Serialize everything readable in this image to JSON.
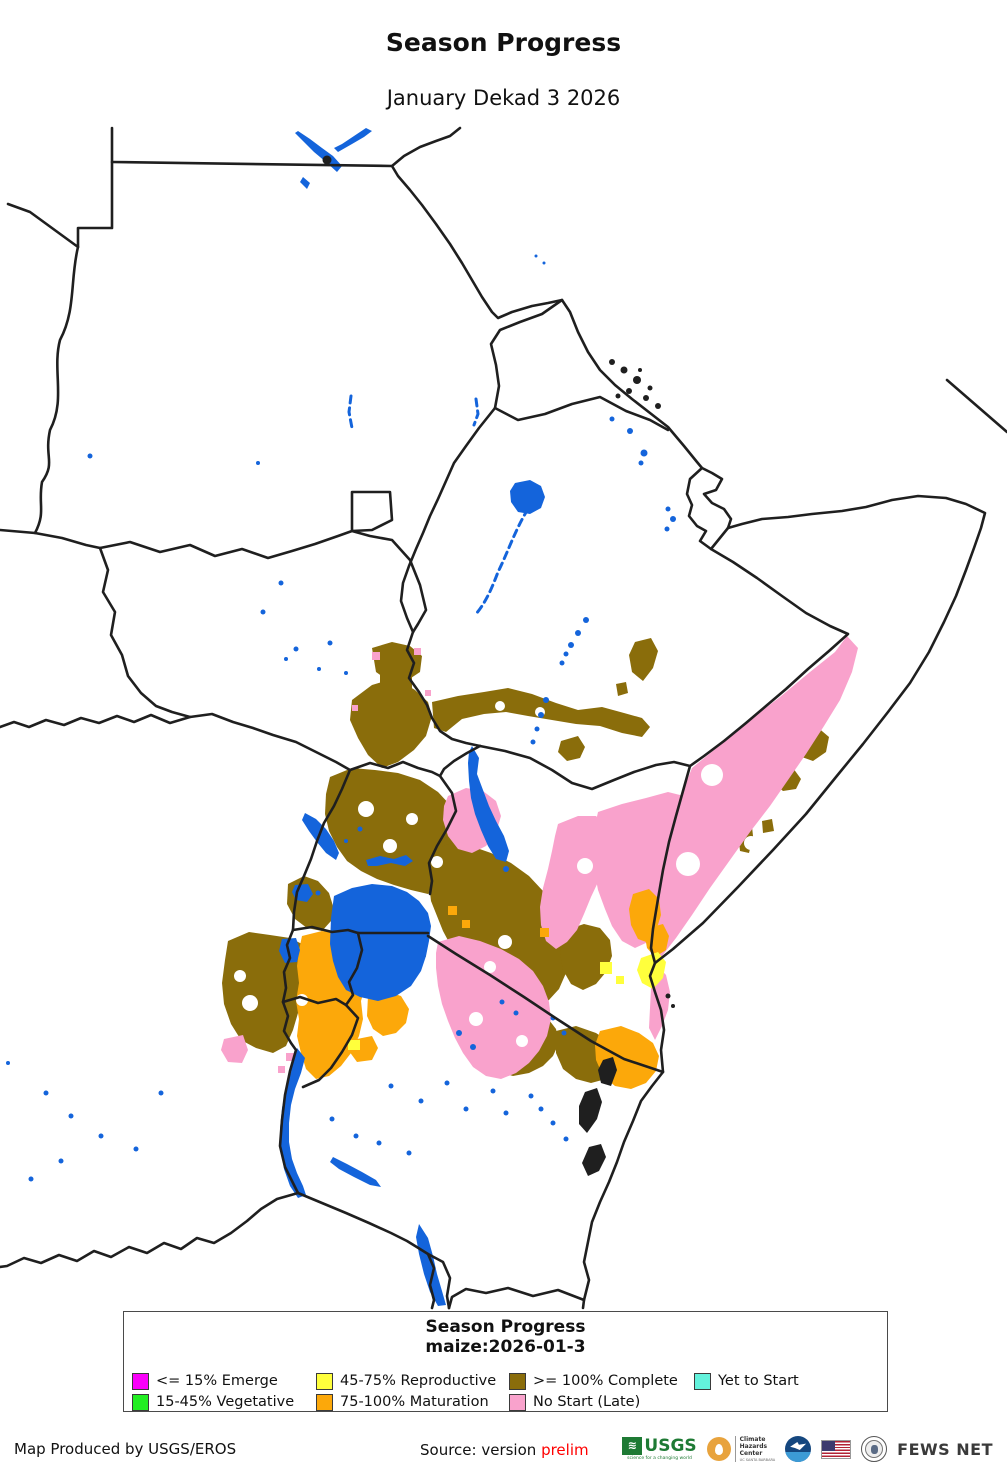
{
  "header": {
    "title": "Season Progress",
    "subtitle": "January Dekad 3 2026"
  },
  "colors": {
    "emerge": "#FA00FA",
    "vegetative": "#22EE22",
    "reproductive": "#FFFF3C",
    "maturation": "#FCA80A",
    "complete": "#8A6D0B",
    "nostart": "#F9A2CC",
    "yettostart": "#63F2DC"
  },
  "map": {
    "water": "#1464DB",
    "border": "#1F1F1F"
  },
  "legend": {
    "title_line1": "Season Progress",
    "title_line2": "maize:2026-01-3",
    "items": [
      {
        "label": "<= 15% Emerge",
        "color_key": "emerge",
        "row": 1,
        "col": 1
      },
      {
        "label": "15-45% Vegetative",
        "color_key": "vegetative",
        "row": 2,
        "col": 1
      },
      {
        "label": "45-75% Reproductive",
        "color_key": "reproductive",
        "row": 1,
        "col": 2
      },
      {
        "label": "75-100% Maturation",
        "color_key": "maturation",
        "row": 2,
        "col": 2
      },
      {
        "label": ">= 100% Complete",
        "color_key": "complete",
        "row": 1,
        "col": 3
      },
      {
        "label": "No Start (Late)",
        "color_key": "nostart",
        "row": 2,
        "col": 3
      },
      {
        "label": "Yet to Start",
        "color_key": "yettostart",
        "row": 1,
        "col": 4
      }
    ]
  },
  "footer": {
    "produced_by": "Map Produced by USGS/EROS",
    "source_prefix": "Source: version ",
    "source_status": "prelim",
    "source_status_color": "#FF0000"
  },
  "logos": {
    "usgs_text": "USGS",
    "usgs_tagline": "science for a changing world",
    "chc_lines": [
      "Climate",
      "Hazards",
      "Center"
    ],
    "chc_sub": "UC SANTA BARBARA",
    "fewsnet_text": "FEWS NET"
  }
}
